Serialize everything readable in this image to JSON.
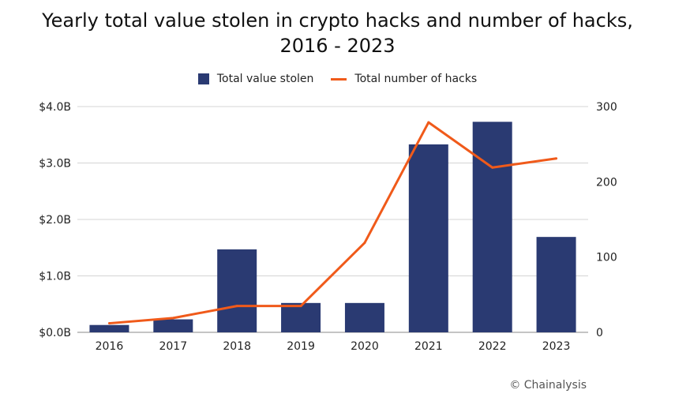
{
  "chart_data": {
    "type": "bar",
    "title": "Yearly total value stolen in crypto hacks and number of hacks,",
    "title_line2": "2016 - 2023",
    "categories": [
      "2016",
      "2017",
      "2018",
      "2019",
      "2020",
      "2021",
      "2022",
      "2023"
    ],
    "series": [
      {
        "name": "Total value stolen",
        "type": "bar",
        "axis": "left",
        "color": "#2a3a72",
        "values": [
          0.13,
          0.23,
          1.47,
          0.52,
          0.52,
          3.33,
          3.73,
          1.69
        ]
      },
      {
        "name": "Total number of hacks",
        "type": "line",
        "axis": "right",
        "color": "#f05a1a",
        "values": [
          12,
          19,
          35,
          35,
          119,
          279,
          219,
          231
        ]
      }
    ],
    "yleft": {
      "ylim": [
        0,
        4
      ],
      "ticks": [
        0,
        1,
        2,
        3,
        4
      ],
      "tick_labels": [
        "$0.0B",
        "$1.0B",
        "$2.0B",
        "$3.0B",
        "$4.0B"
      ]
    },
    "yright": {
      "ylim": [
        0,
        300
      ],
      "ticks": [
        0,
        100,
        200,
        300
      ],
      "tick_labels": [
        "0",
        "100",
        "200",
        "300"
      ]
    },
    "grid": true,
    "legend": "top-center"
  },
  "source": "© Chainalysis"
}
